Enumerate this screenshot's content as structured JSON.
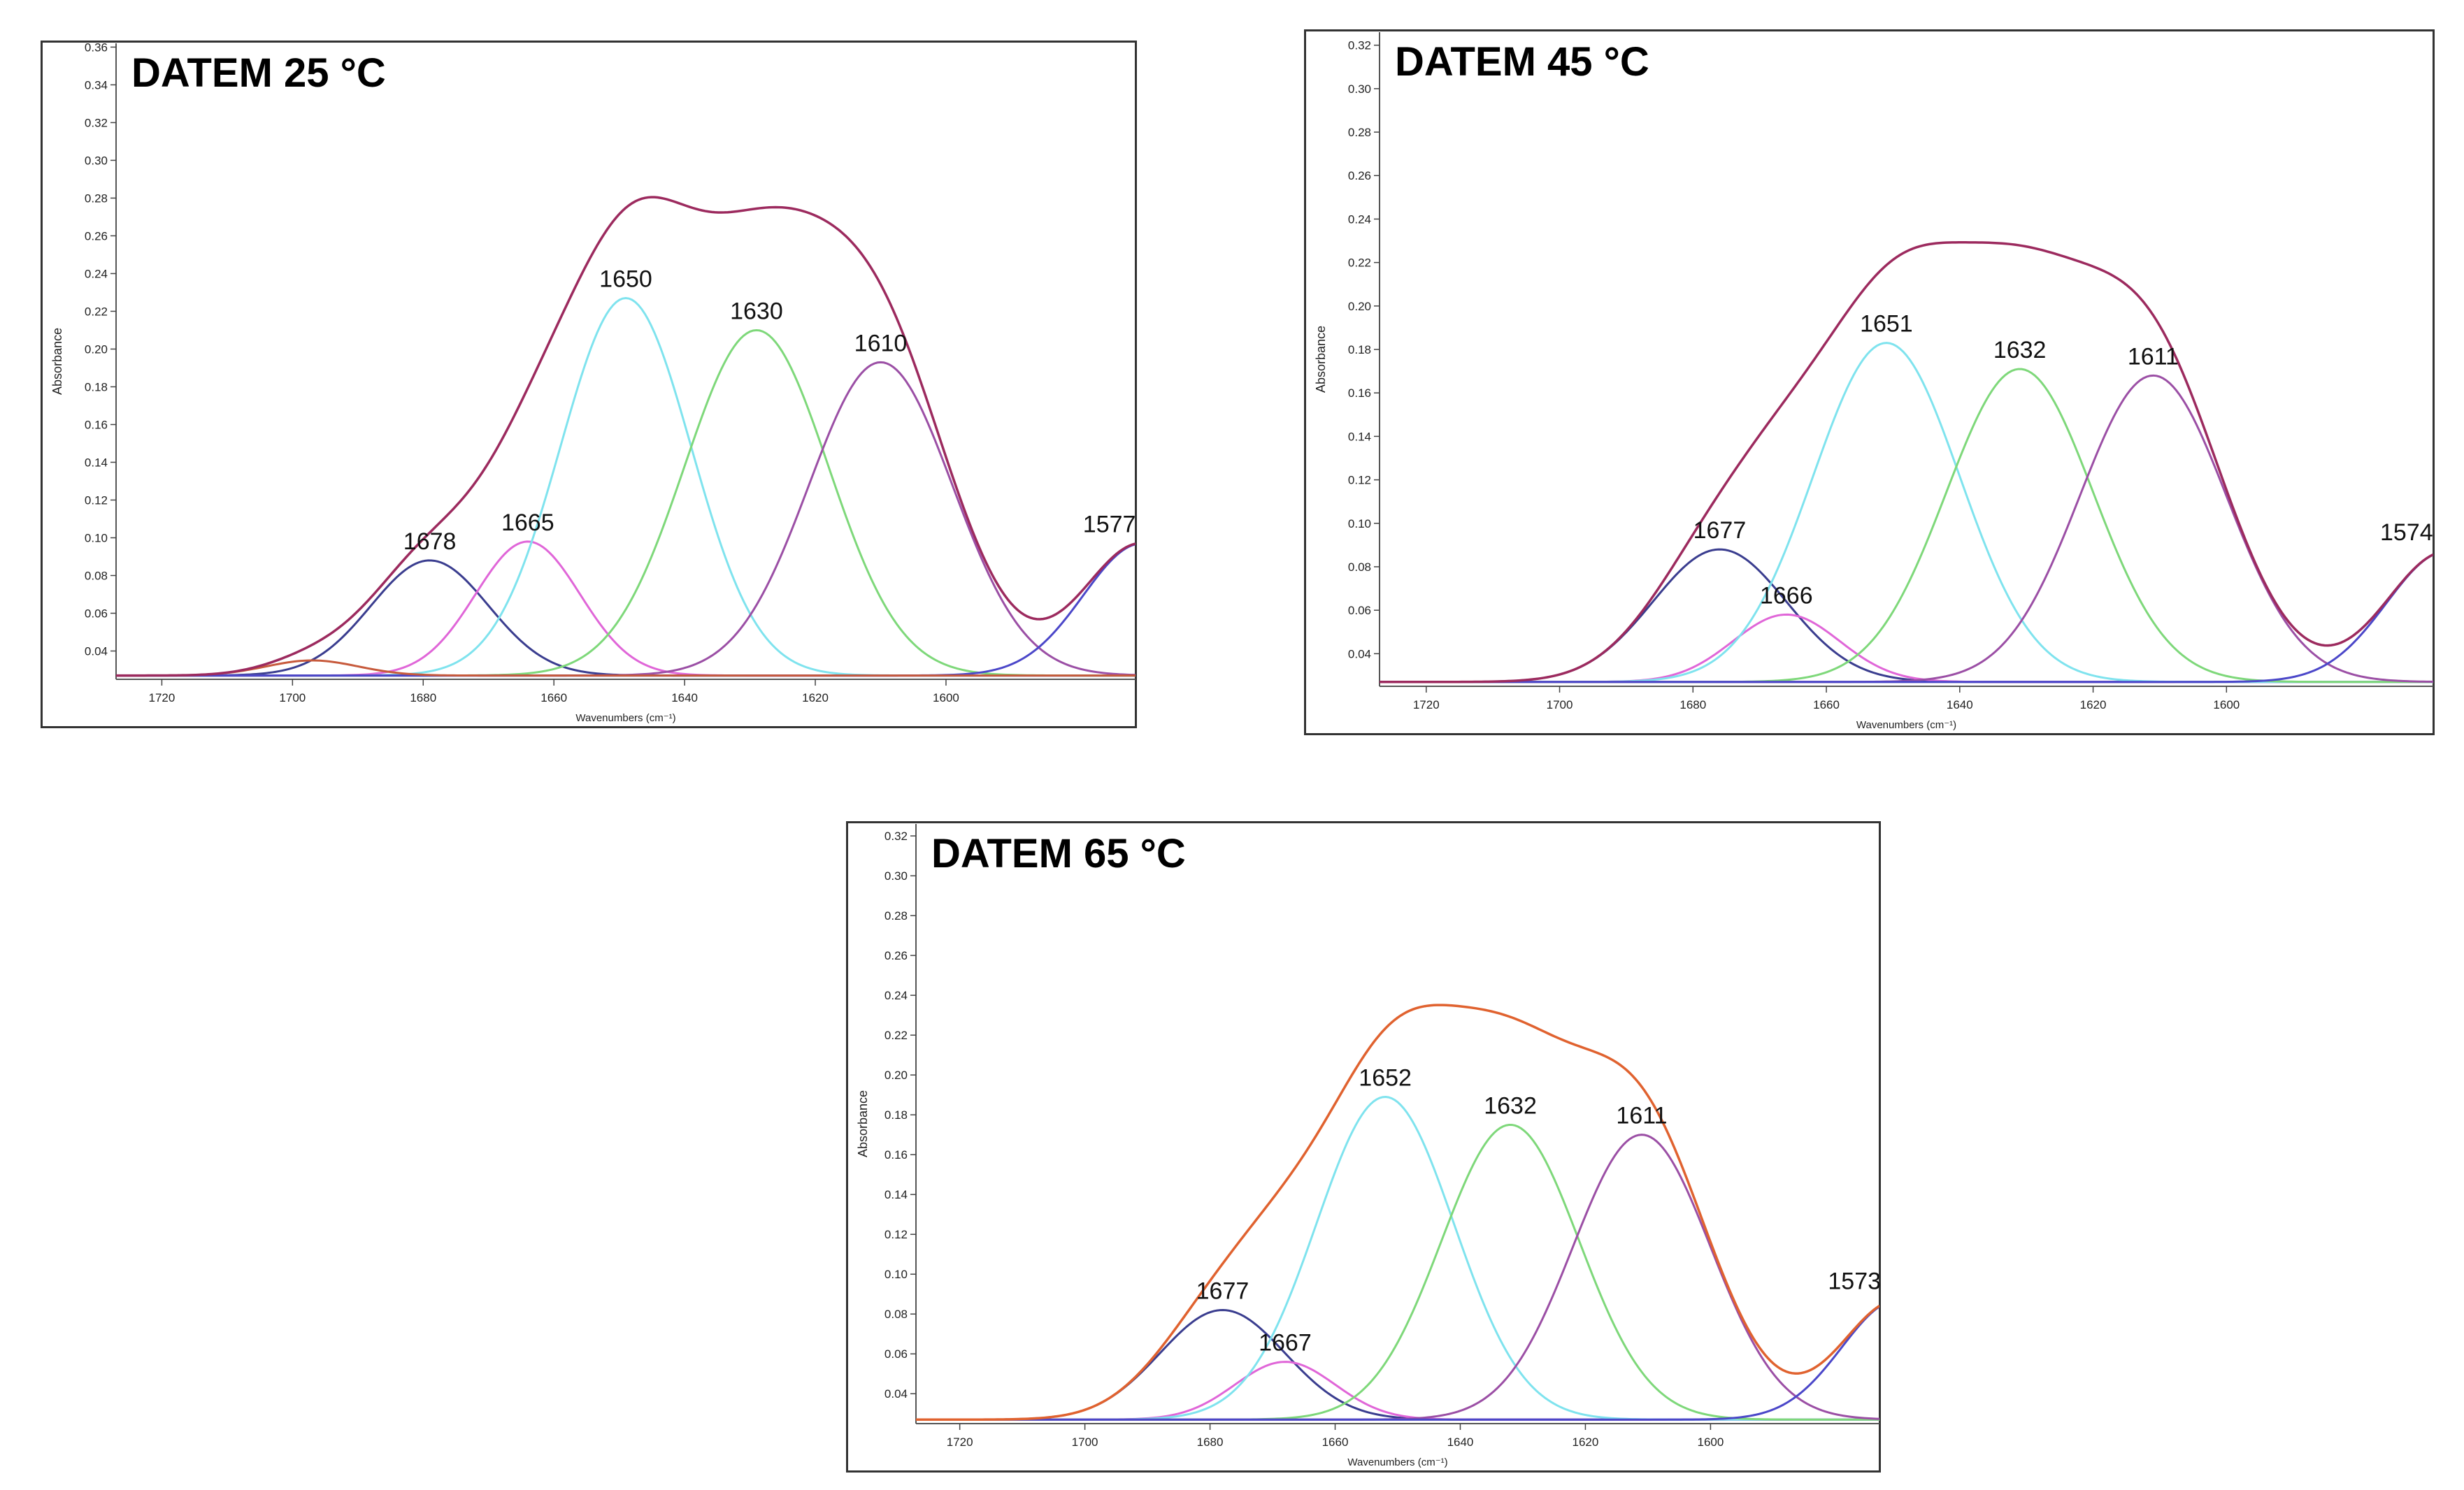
{
  "chart_data": [
    {
      "type": "line",
      "title": "DATEM 25 °C",
      "xlabel": "Wavenumbers (cm⁻¹)",
      "ylabel": "Absorbance",
      "xlim": [
        1727,
        1571
      ],
      "ylim": [
        0.025,
        0.362
      ],
      "xticks": [
        1720,
        1700,
        1680,
        1660,
        1640,
        1620,
        1600
      ],
      "yticks": [
        0.04,
        0.06,
        0.08,
        0.1,
        0.12,
        0.14,
        0.16,
        0.18,
        0.2,
        0.22,
        0.24,
        0.26,
        0.28,
        0.3,
        0.32,
        0.34,
        0.36
      ],
      "ytick_labels": [
        "0.04",
        "0.06",
        "0.08",
        "0.10",
        "0.12",
        "0.14",
        "0.16",
        "0.18",
        "0.20",
        "0.22",
        "0.24",
        "0.26",
        "0.28",
        "0.30",
        "0.32",
        "0.34",
        "0.36"
      ],
      "baseline": 0.027,
      "envelope_color": "#9c2a5e",
      "series": [
        {
          "name": "1678",
          "label": "1678",
          "center": 1679,
          "amplitude": 0.061,
          "sigma": 9,
          "color": "#3a3d8f"
        },
        {
          "name": "1665",
          "label": "1665",
          "center": 1664,
          "amplitude": 0.071,
          "sigma": 8,
          "color": "#e066d8"
        },
        {
          "name": "1650",
          "label": "1650",
          "center": 1649,
          "amplitude": 0.2,
          "sigma": 10,
          "color": "#7fe3ee"
        },
        {
          "name": "1630",
          "label": "1630",
          "center": 1629,
          "amplitude": 0.183,
          "sigma": 11,
          "color": "#7ed87a"
        },
        {
          "name": "1610",
          "label": "1610",
          "center": 1610,
          "amplitude": 0.166,
          "sigma": 11,
          "color": "#9b4fa5"
        },
        {
          "name": "1577",
          "label": "1577",
          "center": 1570,
          "amplitude": 0.07,
          "sigma": 9,
          "color": "#4b47c9"
        },
        {
          "name": "minor",
          "label": "",
          "center": 1697,
          "amplitude": 0.008,
          "sigma": 7,
          "color": "#c75a3c"
        }
      ]
    },
    {
      "type": "line",
      "title": "DATEM 45 °C",
      "xlabel": "Wavenumbers (cm⁻¹)",
      "ylabel": "Absorbance",
      "xlim": [
        1727,
        1569
      ],
      "ylim": [
        0.025,
        0.326
      ],
      "xticks": [
        1720,
        1700,
        1680,
        1660,
        1640,
        1620,
        1600
      ],
      "yticks": [
        0.04,
        0.06,
        0.08,
        0.1,
        0.12,
        0.14,
        0.16,
        0.18,
        0.2,
        0.22,
        0.24,
        0.26,
        0.28,
        0.3,
        0.32
      ],
      "ytick_labels": [
        "0.04",
        "0.06",
        "0.08",
        "0.10",
        "0.12",
        "0.14",
        "0.16",
        "0.18",
        "0.20",
        "0.22",
        "0.24",
        "0.26",
        "0.28",
        "0.30",
        "0.32"
      ],
      "baseline": 0.027,
      "envelope_color": "#9c2a5e",
      "series": [
        {
          "name": "1677",
          "label": "1677",
          "center": 1676,
          "amplitude": 0.061,
          "sigma": 10,
          "color": "#3a3d8f"
        },
        {
          "name": "1666",
          "label": "1666",
          "center": 1666,
          "amplitude": 0.031,
          "sigma": 8,
          "color": "#e066d8"
        },
        {
          "name": "1651",
          "label": "1651",
          "center": 1651,
          "amplitude": 0.156,
          "sigma": 11,
          "color": "#7fe3ee"
        },
        {
          "name": "1632",
          "label": "1632",
          "center": 1631,
          "amplitude": 0.144,
          "sigma": 11,
          "color": "#7ed87a"
        },
        {
          "name": "1611",
          "label": "1611",
          "center": 1611,
          "amplitude": 0.141,
          "sigma": 11,
          "color": "#9b4fa5"
        },
        {
          "name": "1574",
          "label": "1574",
          "center": 1567,
          "amplitude": 0.06,
          "sigma": 9,
          "color": "#4b47c9"
        }
      ]
    },
    {
      "type": "line",
      "title": "DATEM 65 °C",
      "xlabel": "Wavenumbers (cm⁻¹)",
      "ylabel": "Absorbance",
      "xlim": [
        1727,
        1573
      ],
      "ylim": [
        0.025,
        0.326
      ],
      "xticks": [
        1720,
        1700,
        1680,
        1660,
        1640,
        1620,
        1600
      ],
      "yticks": [
        0.04,
        0.06,
        0.08,
        0.1,
        0.12,
        0.14,
        0.16,
        0.18,
        0.2,
        0.22,
        0.24,
        0.26,
        0.28,
        0.3,
        0.32
      ],
      "ytick_labels": [
        "0.04",
        "0.06",
        "0.08",
        "0.10",
        "0.12",
        "0.14",
        "0.16",
        "0.18",
        "0.20",
        "0.22",
        "0.24",
        "0.26",
        "0.28",
        "0.30",
        "0.32"
      ],
      "baseline": 0.027,
      "envelope_color": "#e0622f",
      "series": [
        {
          "name": "1677",
          "label": "1677",
          "center": 1678,
          "amplitude": 0.055,
          "sigma": 10,
          "color": "#3a3d8f"
        },
        {
          "name": "1667",
          "label": "1667",
          "center": 1668,
          "amplitude": 0.029,
          "sigma": 8,
          "color": "#e066d8"
        },
        {
          "name": "1652",
          "label": "1652",
          "center": 1652,
          "amplitude": 0.162,
          "sigma": 11,
          "color": "#7fe3ee"
        },
        {
          "name": "1632",
          "label": "1632",
          "center": 1632,
          "amplitude": 0.148,
          "sigma": 11,
          "color": "#7ed87a"
        },
        {
          "name": "1611",
          "label": "1611",
          "center": 1611,
          "amplitude": 0.143,
          "sigma": 11,
          "color": "#9b4fa5"
        },
        {
          "name": "1573",
          "label": "1573",
          "center": 1570,
          "amplitude": 0.06,
          "sigma": 9,
          "color": "#4b47c9"
        }
      ]
    }
  ]
}
